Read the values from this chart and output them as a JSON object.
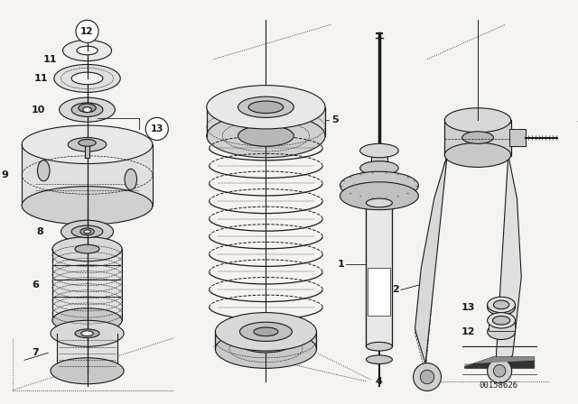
{
  "bg_color": "#f5f3ef",
  "line_color": "#1a1a1a",
  "footer_text": "00158626",
  "dashed_box_color": "#555555"
}
